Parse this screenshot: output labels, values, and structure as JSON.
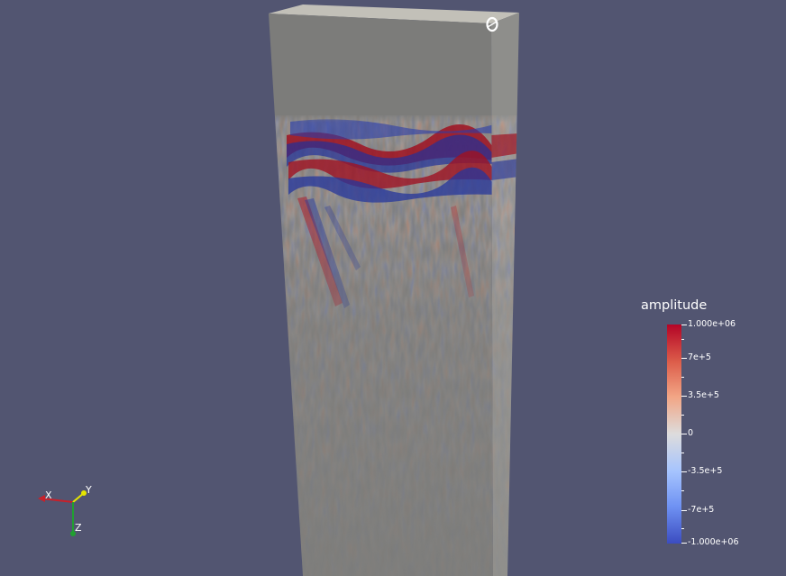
{
  "colorbar": {
    "title": "amplitude",
    "tick_labels": [
      "1.000e+06",
      "7e+5",
      "3.5e+5",
      "0",
      "-3.5e+5",
      "-7e+5",
      "-1.000e+06"
    ],
    "range": [
      -1000000,
      1000000
    ],
    "colormap": [
      "#3b4cc0",
      "#dddcdc",
      "#b40426"
    ]
  },
  "orientation_axes": {
    "x_label": "X",
    "y_label": "Y",
    "z_label": "Z",
    "x_color": "#c8202a",
    "y_color": "#e6e600",
    "z_color": "#20a030"
  },
  "scene": {
    "background_color": "#525571",
    "volume_face_color": "#7c7c7a",
    "icons": [
      "center-of-rotation-icon"
    ]
  }
}
